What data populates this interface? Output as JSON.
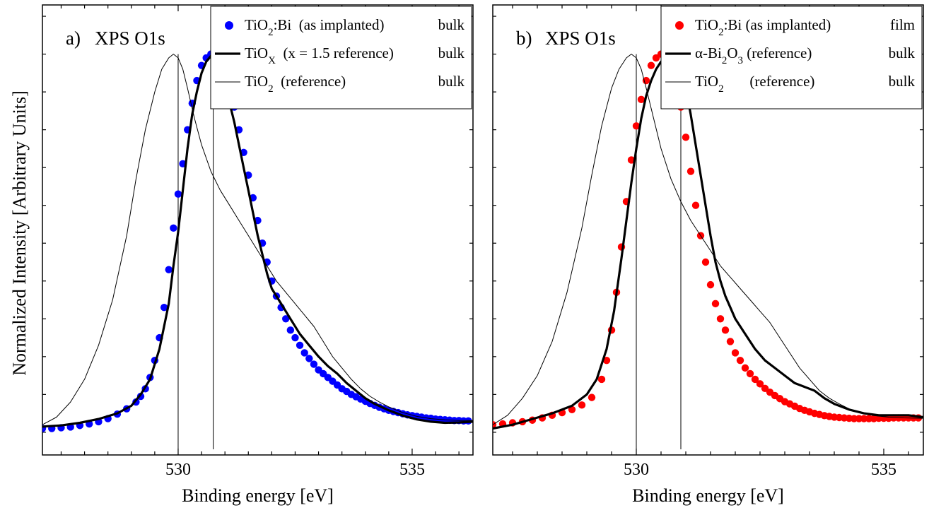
{
  "ylabel": "Normalized Intensity [Arbitrary Units]",
  "chart_data": [
    {
      "type": "line",
      "panel_label": "a)",
      "title": "XPS O1s",
      "xlabel": "Binding energy [eV]",
      "ylabel": "Normalized Intensity [Arbitrary Units]",
      "xlim": [
        527.1,
        536.3
      ],
      "ylim": [
        -0.06,
        1.13
      ],
      "xticks": [
        530,
        535
      ],
      "x_minor_step": 0.5,
      "grid": false,
      "legend_position": "top-right",
      "vlines": [
        {
          "x": 530.0,
          "ymax": 1.0
        },
        {
          "x": 530.75,
          "ymax": 1.0
        }
      ],
      "series": [
        {
          "name_parts": [
            "TiO",
            "2",
            ":Bi  (as implanted)"
          ],
          "suffix": "bulk",
          "style": "points",
          "color": "#0000ff",
          "x": [
            527.1,
            527.3,
            527.5,
            527.7,
            527.9,
            528.1,
            528.3,
            528.5,
            528.7,
            528.9,
            529.1,
            529.2,
            529.3,
            529.4,
            529.5,
            529.6,
            529.7,
            529.8,
            529.9,
            530.0,
            530.1,
            530.2,
            530.3,
            530.4,
            530.5,
            530.6,
            530.7,
            530.8,
            530.9,
            531.0,
            531.1,
            531.2,
            531.3,
            531.4,
            531.5,
            531.6,
            531.7,
            531.8,
            531.9,
            532.0,
            532.1,
            532.2,
            532.3,
            532.4,
            532.5,
            532.6,
            532.7,
            532.8,
            532.9,
            533.0,
            533.1,
            533.2,
            533.3,
            533.4,
            533.5,
            533.6,
            533.7,
            533.8,
            533.9,
            534.0,
            534.1,
            534.2,
            534.3,
            534.4,
            534.5,
            534.6,
            534.7,
            534.8,
            534.9,
            535.0,
            535.1,
            535.2,
            535.3,
            535.4,
            535.5,
            535.6,
            535.7,
            535.8,
            535.9,
            536.0,
            536.1,
            536.2
          ],
          "y": [
            0.01,
            0.01,
            0.012,
            0.014,
            0.018,
            0.022,
            0.028,
            0.036,
            0.048,
            0.062,
            0.08,
            0.095,
            0.115,
            0.145,
            0.19,
            0.25,
            0.33,
            0.43,
            0.54,
            0.63,
            0.71,
            0.8,
            0.87,
            0.93,
            0.97,
            0.99,
            1.0,
            1.0,
            0.98,
            0.95,
            0.91,
            0.86,
            0.8,
            0.74,
            0.68,
            0.62,
            0.56,
            0.5,
            0.45,
            0.4,
            0.36,
            0.33,
            0.3,
            0.27,
            0.25,
            0.23,
            0.21,
            0.195,
            0.18,
            0.165,
            0.155,
            0.145,
            0.135,
            0.125,
            0.115,
            0.108,
            0.1,
            0.094,
            0.088,
            0.082,
            0.076,
            0.071,
            0.066,
            0.062,
            0.058,
            0.055,
            0.052,
            0.049,
            0.046,
            0.044,
            0.042,
            0.04,
            0.038,
            0.037,
            0.035,
            0.034,
            0.033,
            0.032,
            0.031,
            0.031,
            0.03,
            0.03
          ]
        },
        {
          "name_parts": [
            "TiO",
            "X",
            "  (x = 1.5 reference)"
          ],
          "suffix": "bulk",
          "style": "thick",
          "color": "#000000",
          "x": [
            527.1,
            527.5,
            527.9,
            528.3,
            528.7,
            529.0,
            529.2,
            529.4,
            529.6,
            529.8,
            529.9,
            530.0,
            530.1,
            530.2,
            530.3,
            530.4,
            530.5,
            530.6,
            530.7,
            530.75,
            530.8,
            530.9,
            531.0,
            531.1,
            531.2,
            531.3,
            531.4,
            531.5,
            531.6,
            531.7,
            531.8,
            531.9,
            532.0,
            532.2,
            532.4,
            532.6,
            532.8,
            533.0,
            533.2,
            533.4,
            533.6,
            533.8,
            534.0,
            534.2,
            534.5,
            534.8,
            535.1,
            535.4,
            535.7,
            536.0,
            536.3
          ],
          "y": [
            0.015,
            0.018,
            0.025,
            0.035,
            0.05,
            0.07,
            0.1,
            0.14,
            0.22,
            0.34,
            0.44,
            0.53,
            0.64,
            0.75,
            0.84,
            0.9,
            0.95,
            0.98,
            0.995,
            1.0,
            0.99,
            0.96,
            0.92,
            0.87,
            0.82,
            0.76,
            0.7,
            0.64,
            0.58,
            0.52,
            0.47,
            0.42,
            0.38,
            0.34,
            0.3,
            0.26,
            0.23,
            0.2,
            0.175,
            0.155,
            0.13,
            0.11,
            0.09,
            0.075,
            0.058,
            0.044,
            0.034,
            0.028,
            0.025,
            0.026,
            0.028
          ]
        },
        {
          "name_parts": [
            "TiO",
            "2",
            "  (reference)"
          ],
          "suffix": "bulk",
          "style": "thin",
          "color": "#000000",
          "x": [
            527.1,
            527.4,
            527.7,
            528.0,
            528.3,
            528.6,
            528.9,
            529.1,
            529.3,
            529.5,
            529.65,
            529.8,
            529.9,
            530.0,
            530.1,
            530.2,
            530.35,
            530.5,
            530.7,
            530.9,
            531.1,
            531.3,
            531.5,
            531.7,
            531.9,
            532.1,
            532.3,
            532.5,
            532.7,
            532.9,
            533.1,
            533.3,
            533.5,
            533.7,
            533.9,
            534.1,
            534.3,
            534.5,
            534.8,
            535.1,
            535.4,
            535.7,
            536.0,
            536.3
          ],
          "y": [
            0.02,
            0.04,
            0.08,
            0.14,
            0.23,
            0.35,
            0.52,
            0.67,
            0.8,
            0.9,
            0.96,
            0.99,
            1.0,
            0.99,
            0.96,
            0.91,
            0.83,
            0.76,
            0.69,
            0.64,
            0.6,
            0.56,
            0.52,
            0.48,
            0.44,
            0.4,
            0.37,
            0.34,
            0.31,
            0.28,
            0.24,
            0.2,
            0.17,
            0.14,
            0.115,
            0.095,
            0.08,
            0.067,
            0.052,
            0.042,
            0.036,
            0.033,
            0.031,
            0.031
          ]
        }
      ]
    },
    {
      "type": "line",
      "panel_label": "b)",
      "title": "XPS O1s",
      "xlabel": "Binding energy [eV]",
      "ylabel": "Normalized Intensity [Arbitrary Units]",
      "xlim": [
        527.1,
        535.8
      ],
      "ylim": [
        -0.06,
        1.13
      ],
      "xticks": [
        530,
        535
      ],
      "x_minor_step": 0.5,
      "grid": false,
      "legend_position": "top-right",
      "vlines": [
        {
          "x": 530.0,
          "ymax": 1.0
        },
        {
          "x": 530.9,
          "ymax": 1.0
        }
      ],
      "series": [
        {
          "name_parts": [
            "TiO",
            "2",
            ":Bi (as implanted)"
          ],
          "suffix": "film",
          "style": "points",
          "color": "#ff0000",
          "x": [
            527.1,
            527.3,
            527.5,
            527.7,
            527.9,
            528.1,
            528.3,
            528.5,
            528.7,
            528.9,
            529.1,
            529.3,
            529.4,
            529.5,
            529.6,
            529.7,
            529.8,
            529.9,
            530.0,
            530.1,
            530.2,
            530.3,
            530.4,
            530.5,
            530.6,
            530.7,
            530.8,
            530.9,
            531.0,
            531.1,
            531.2,
            531.3,
            531.4,
            531.5,
            531.6,
            531.7,
            531.8,
            531.9,
            532.0,
            532.1,
            532.2,
            532.3,
            532.4,
            532.5,
            532.6,
            532.7,
            532.8,
            532.9,
            533.0,
            533.1,
            533.2,
            533.3,
            533.4,
            533.5,
            533.6,
            533.7,
            533.8,
            533.9,
            534.0,
            534.1,
            534.2,
            534.3,
            534.4,
            534.5,
            534.6,
            534.7,
            534.8,
            534.9,
            535.0,
            535.1,
            535.2,
            535.3,
            535.4,
            535.5,
            535.6,
            535.7
          ],
          "y": [
            0.02,
            0.022,
            0.025,
            0.028,
            0.032,
            0.038,
            0.045,
            0.052,
            0.06,
            0.072,
            0.092,
            0.14,
            0.19,
            0.27,
            0.37,
            0.49,
            0.61,
            0.72,
            0.81,
            0.88,
            0.93,
            0.97,
            0.99,
            1.0,
            1.0,
            0.98,
            0.93,
            0.86,
            0.78,
            0.69,
            0.6,
            0.52,
            0.45,
            0.39,
            0.34,
            0.3,
            0.27,
            0.24,
            0.21,
            0.19,
            0.17,
            0.155,
            0.14,
            0.128,
            0.116,
            0.106,
            0.097,
            0.089,
            0.081,
            0.075,
            0.069,
            0.063,
            0.058,
            0.054,
            0.05,
            0.047,
            0.044,
            0.042,
            0.04,
            0.039,
            0.038,
            0.037,
            0.036,
            0.036,
            0.036,
            0.036,
            0.036,
            0.037,
            0.037,
            0.037,
            0.038,
            0.038,
            0.038,
            0.038,
            0.038,
            0.038
          ]
        },
        {
          "name_parts": [
            "α-Bi",
            "2",
            "O",
            "3",
            " (reference)"
          ],
          "suffix": "bulk",
          "style": "thick",
          "color": "#000000",
          "x": [
            527.1,
            527.5,
            527.9,
            528.3,
            528.7,
            529.0,
            529.2,
            529.4,
            529.55,
            529.7,
            529.8,
            529.9,
            530.0,
            530.1,
            530.2,
            530.3,
            530.4,
            530.5,
            530.6,
            530.7,
            530.8,
            530.9,
            531.0,
            531.1,
            531.2,
            531.3,
            531.4,
            531.5,
            531.6,
            531.7,
            531.8,
            531.9,
            532.0,
            532.2,
            532.4,
            532.6,
            532.8,
            533.0,
            533.2,
            533.4,
            533.6,
            533.8,
            534.0,
            534.3,
            534.6,
            534.9,
            535.2,
            535.5,
            535.8
          ],
          "y": [
            0.01,
            0.02,
            0.035,
            0.05,
            0.07,
            0.1,
            0.14,
            0.22,
            0.32,
            0.46,
            0.56,
            0.66,
            0.75,
            0.83,
            0.89,
            0.93,
            0.96,
            0.98,
            0.99,
            1.0,
            0.99,
            0.96,
            0.91,
            0.84,
            0.76,
            0.68,
            0.6,
            0.52,
            0.45,
            0.4,
            0.36,
            0.33,
            0.3,
            0.26,
            0.22,
            0.19,
            0.17,
            0.15,
            0.13,
            0.12,
            0.11,
            0.09,
            0.075,
            0.06,
            0.05,
            0.045,
            0.045,
            0.045,
            0.04
          ]
        },
        {
          "name_parts": [
            "TiO",
            "2",
            "       (reference)"
          ],
          "suffix": "bulk",
          "style": "thin",
          "color": "#000000",
          "x": [
            527.1,
            527.4,
            527.7,
            528.0,
            528.3,
            528.6,
            528.9,
            529.1,
            529.3,
            529.5,
            529.65,
            529.8,
            529.9,
            530.0,
            530.1,
            530.2,
            530.35,
            530.5,
            530.7,
            530.9,
            531.1,
            531.3,
            531.5,
            531.7,
            531.9,
            532.1,
            532.3,
            532.5,
            532.7,
            532.9,
            533.1,
            533.3,
            533.5,
            533.7,
            533.9,
            534.1,
            534.3,
            534.5,
            534.8,
            535.1,
            535.4,
            535.8
          ],
          "y": [
            0.02,
            0.045,
            0.09,
            0.15,
            0.24,
            0.37,
            0.54,
            0.68,
            0.81,
            0.91,
            0.96,
            0.99,
            1.0,
            0.99,
            0.96,
            0.91,
            0.83,
            0.75,
            0.67,
            0.61,
            0.56,
            0.52,
            0.48,
            0.44,
            0.41,
            0.38,
            0.35,
            0.32,
            0.29,
            0.25,
            0.21,
            0.17,
            0.14,
            0.11,
            0.09,
            0.075,
            0.062,
            0.052,
            0.044,
            0.04,
            0.038,
            0.037
          ]
        }
      ]
    }
  ]
}
